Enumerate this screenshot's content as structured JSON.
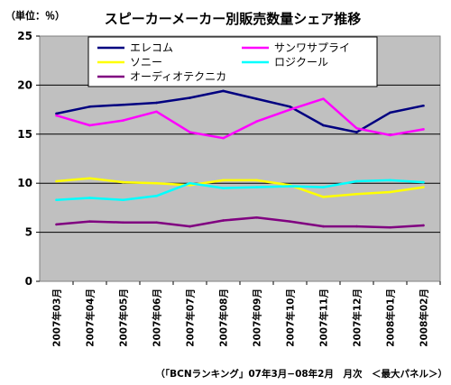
{
  "chart_data": {
    "type": "line",
    "title": "スピーカーメーカー別販売数量シェア推移",
    "unit_label": "（単位：％）",
    "source_note": "（「BCNランキング」07年3月−08年2月　月次　＜最大パネル＞）",
    "ylim": [
      0,
      25
    ],
    "yticks": [
      "0",
      "5",
      "10",
      "15",
      "20",
      "25"
    ],
    "ytick_values": [
      0,
      5,
      10,
      15,
      20,
      25
    ],
    "grid": "horizontal",
    "legend_position": "top",
    "categories": [
      "2007年03月",
      "2007年04月",
      "2007年05月",
      "2007年06月",
      "2007年07月",
      "2007年08月",
      "2007年09月",
      "2007年10月",
      "2007年11月",
      "2007年12月",
      "2008年01月",
      "2008年02月"
    ],
    "series": [
      {
        "name": "エレコム",
        "color": "#000080",
        "values": [
          17.1,
          17.8,
          18.0,
          18.2,
          18.7,
          19.4,
          18.6,
          17.8,
          15.9,
          15.2,
          17.2,
          17.9
        ]
      },
      {
        "name": "サンワサプライ",
        "color": "#ff00ff",
        "values": [
          16.9,
          15.9,
          16.4,
          17.3,
          15.2,
          14.6,
          16.3,
          17.5,
          18.6,
          15.6,
          14.9,
          15.5
        ]
      },
      {
        "name": "ソニー",
        "color": "#ffff00",
        "values": [
          10.2,
          10.5,
          10.1,
          10.0,
          9.8,
          10.3,
          10.3,
          9.8,
          8.6,
          8.9,
          9.1,
          9.6
        ]
      },
      {
        "name": "ロジクール",
        "color": "#00ffff",
        "values": [
          8.3,
          8.5,
          8.3,
          8.7,
          10.0,
          9.5,
          9.6,
          9.7,
          9.6,
          10.2,
          10.3,
          10.1
        ]
      },
      {
        "name": "オーディオテクニカ",
        "color": "#800080",
        "values": [
          5.8,
          6.1,
          6.0,
          6.0,
          5.6,
          6.2,
          6.5,
          6.1,
          5.6,
          5.6,
          5.5,
          5.7
        ]
      }
    ]
  }
}
